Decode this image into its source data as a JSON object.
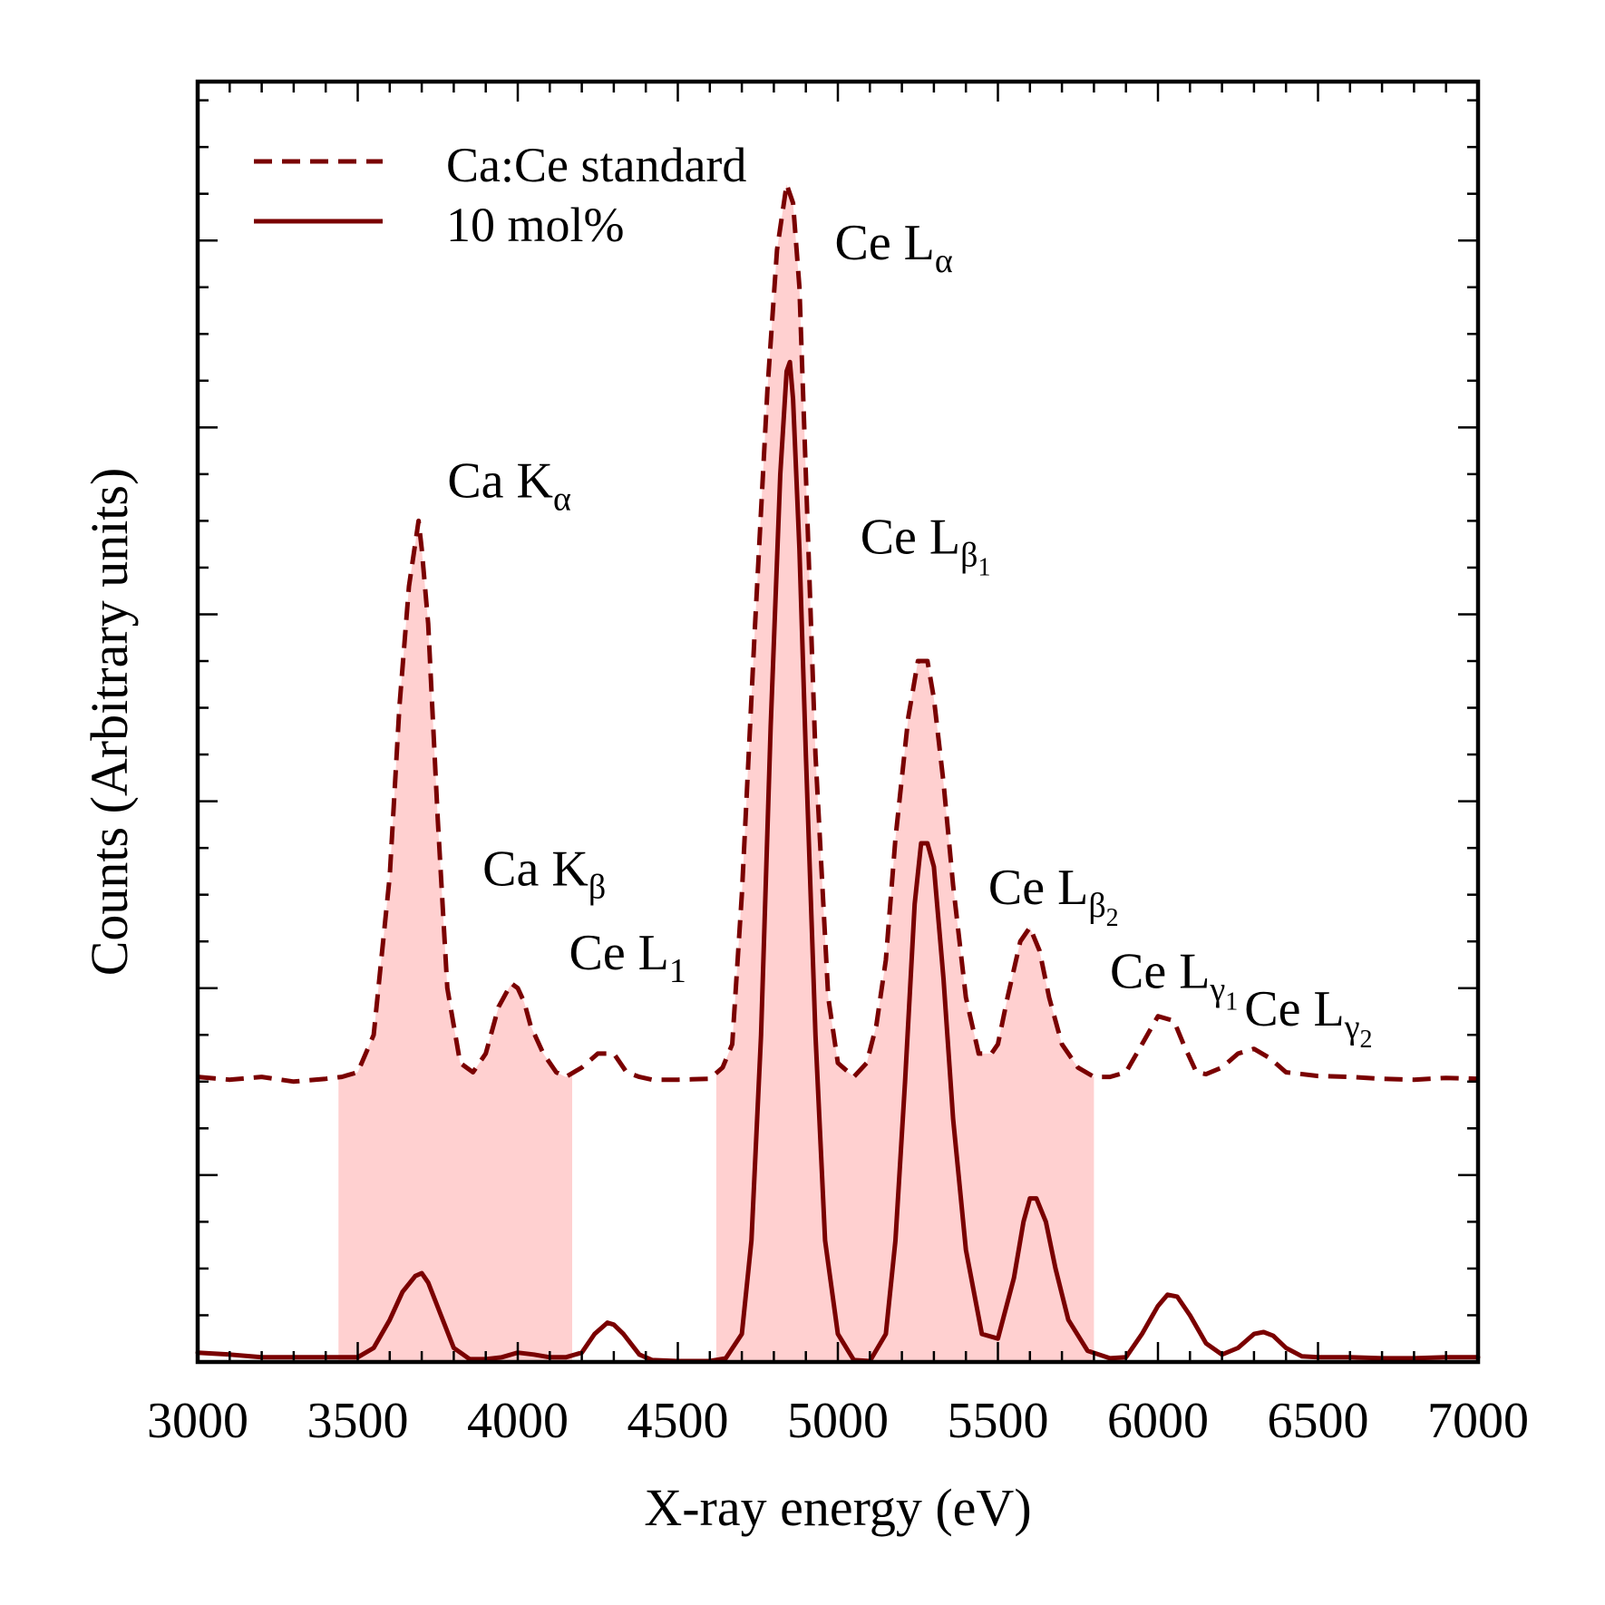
{
  "chart_data": {
    "type": "line",
    "xlabel": "X-ray energy (eV)",
    "ylabel": "Counts (Arbitrary units)",
    "xlim": [
      3000,
      7000
    ],
    "ylim": [
      0,
      13.7
    ],
    "x_ticks": [
      "3000",
      "3500",
      "4000",
      "4500",
      "5000",
      "5500",
      "6000",
      "6500",
      "7000"
    ],
    "y_tick_labels_shown": false,
    "legend_position": "top-left",
    "line_color": "#7a0000",
    "fill_color": "#ffd0d0",
    "shaded_regions": [
      [
        3440,
        4170
      ],
      [
        4620,
        5800
      ]
    ],
    "series": [
      {
        "name": "Ca:Ce standard",
        "style": "dashed",
        "x": [
          3000,
          3100,
          3200,
          3300,
          3400,
          3450,
          3500,
          3550,
          3600,
          3630,
          3660,
          3690,
          3700,
          3720,
          3750,
          3780,
          3820,
          3860,
          3900,
          3940,
          3980,
          4000,
          4020,
          4040,
          4080,
          4120,
          4150,
          4200,
          4250,
          4300,
          4340,
          4380,
          4420,
          4500,
          4600,
          4640,
          4670,
          4700,
          4740,
          4780,
          4810,
          4840,
          4860,
          4880,
          4900,
          4930,
          4970,
          5000,
          5050,
          5090,
          5120,
          5150,
          5180,
          5220,
          5250,
          5280,
          5300,
          5330,
          5360,
          5400,
          5440,
          5480,
          5500,
          5530,
          5570,
          5600,
          5630,
          5660,
          5700,
          5750,
          5800,
          5850,
          5900,
          5950,
          6000,
          6050,
          6080,
          6120,
          6150,
          6200,
          6250,
          6300,
          6350,
          6400,
          6500,
          6600,
          6700,
          6800,
          6900,
          7000
        ],
        "y": [
          3.05,
          3.02,
          3.05,
          3.0,
          3.03,
          3.05,
          3.1,
          3.5,
          5.2,
          7.0,
          8.3,
          9.0,
          8.7,
          7.9,
          5.8,
          4.0,
          3.2,
          3.1,
          3.3,
          3.8,
          4.05,
          4.0,
          3.85,
          3.6,
          3.3,
          3.1,
          3.05,
          3.15,
          3.3,
          3.3,
          3.1,
          3.05,
          3.02,
          3.02,
          3.03,
          3.15,
          3.4,
          5.0,
          7.8,
          10.4,
          11.9,
          12.6,
          12.4,
          11.5,
          9.5,
          6.5,
          3.9,
          3.2,
          3.05,
          3.2,
          3.6,
          4.3,
          5.6,
          6.9,
          7.5,
          7.5,
          7.1,
          6.2,
          5.1,
          3.9,
          3.3,
          3.3,
          3.4,
          3.9,
          4.5,
          4.65,
          4.4,
          3.9,
          3.4,
          3.15,
          3.05,
          3.05,
          3.1,
          3.4,
          3.7,
          3.65,
          3.4,
          3.1,
          3.08,
          3.15,
          3.3,
          3.35,
          3.25,
          3.1,
          3.06,
          3.05,
          3.03,
          3.02,
          3.04,
          3.03
        ]
      },
      {
        "name": "10 mol%",
        "style": "solid",
        "x": [
          3000,
          3100,
          3200,
          3300,
          3400,
          3500,
          3550,
          3600,
          3640,
          3680,
          3700,
          3720,
          3760,
          3800,
          3850,
          3900,
          3950,
          4000,
          4050,
          4100,
          4150,
          4200,
          4240,
          4280,
          4300,
          4330,
          4380,
          4420,
          4500,
          4600,
          4650,
          4700,
          4730,
          4760,
          4790,
          4820,
          4840,
          4850,
          4860,
          4880,
          4900,
          4930,
          4960,
          5000,
          5050,
          5100,
          5150,
          5180,
          5210,
          5240,
          5260,
          5280,
          5300,
          5330,
          5360,
          5400,
          5450,
          5500,
          5550,
          5580,
          5600,
          5620,
          5650,
          5680,
          5720,
          5780,
          5850,
          5900,
          5950,
          6000,
          6030,
          6060,
          6100,
          6150,
          6200,
          6250,
          6300,
          6330,
          6360,
          6400,
          6450,
          6500,
          6600,
          6700,
          6800,
          6900,
          7000
        ],
        "y": [
          0.1,
          0.08,
          0.05,
          0.05,
          0.05,
          0.05,
          0.15,
          0.45,
          0.75,
          0.92,
          0.95,
          0.85,
          0.5,
          0.15,
          0.03,
          0.03,
          0.05,
          0.1,
          0.08,
          0.05,
          0.05,
          0.1,
          0.3,
          0.42,
          0.4,
          0.3,
          0.08,
          0.02,
          0.01,
          0.01,
          0.04,
          0.3,
          1.3,
          3.5,
          6.8,
          9.5,
          10.6,
          10.7,
          10.3,
          8.7,
          6.5,
          3.5,
          1.3,
          0.3,
          0.02,
          0.01,
          0.3,
          1.3,
          3.0,
          4.9,
          5.55,
          5.55,
          5.3,
          4.1,
          2.6,
          1.2,
          0.3,
          0.25,
          0.9,
          1.5,
          1.75,
          1.75,
          1.5,
          1.0,
          0.45,
          0.12,
          0.04,
          0.05,
          0.3,
          0.6,
          0.72,
          0.7,
          0.5,
          0.2,
          0.08,
          0.15,
          0.3,
          0.32,
          0.28,
          0.15,
          0.06,
          0.05,
          0.05,
          0.04,
          0.04,
          0.05,
          0.05
        ]
      }
    ],
    "annotations": [
      {
        "base": "Ca K",
        "sub": "α",
        "sub2": "",
        "x": 3780,
        "y": 9.25
      },
      {
        "base": "Ca K",
        "sub": "β",
        "sub2": "",
        "x": 3890,
        "y": 5.1
      },
      {
        "base": "Ce L",
        "sub": "1",
        "sub2": "",
        "x": 4160,
        "y": 4.2
      },
      {
        "base": "Ce L",
        "sub": "α",
        "sub2": "",
        "x": 4990,
        "y": 11.8
      },
      {
        "base": "Ce L",
        "sub": "β",
        "sub2": "1",
        "x": 5070,
        "y": 8.65
      },
      {
        "base": "Ce L",
        "sub": "β",
        "sub2": "2",
        "x": 5470,
        "y": 4.9
      },
      {
        "base": "Ce L",
        "sub": "γ",
        "sub2": "1",
        "x": 5850,
        "y": 4.0
      },
      {
        "base": "Ce L",
        "sub": "γ",
        "sub2": "2",
        "x": 6270,
        "y": 3.6
      }
    ]
  }
}
